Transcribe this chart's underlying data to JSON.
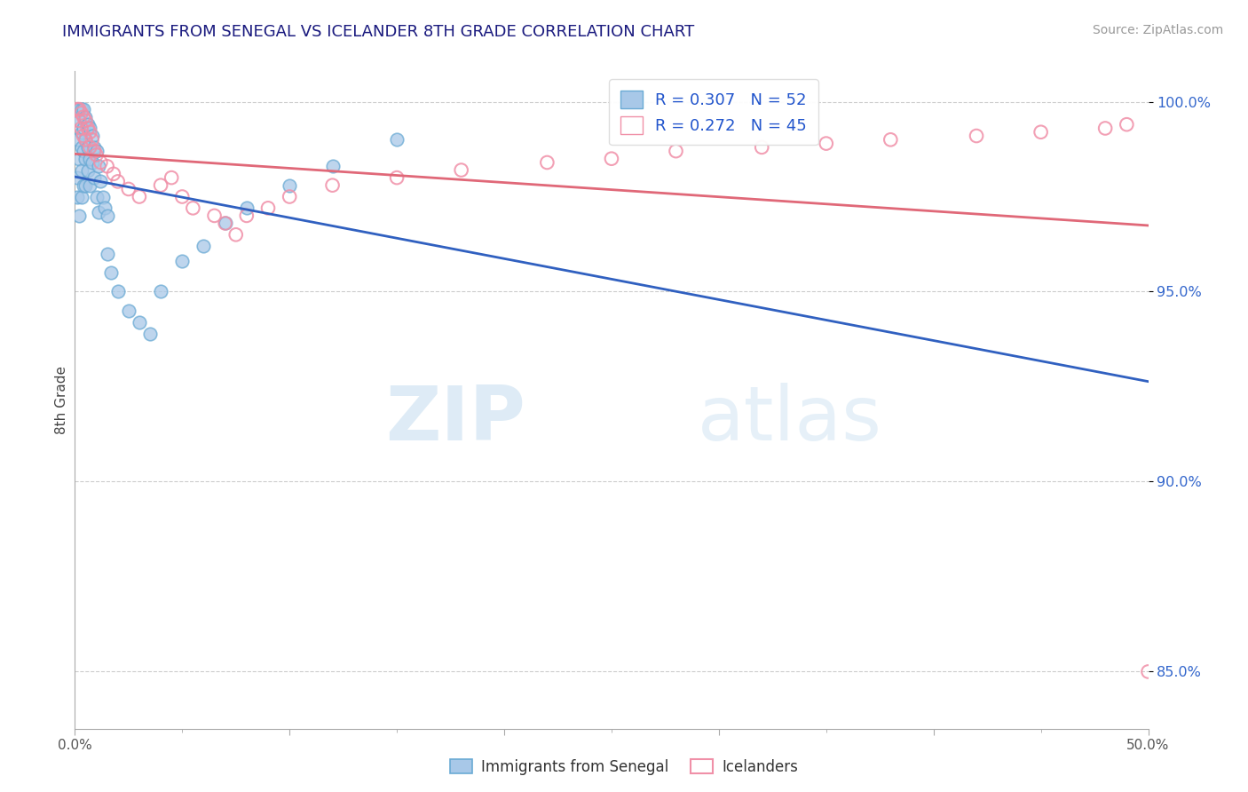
{
  "title": "IMMIGRANTS FROM SENEGAL VS ICELANDER 8TH GRADE CORRELATION CHART",
  "source": "Source: ZipAtlas.com",
  "ylabel": "8th Grade",
  "ytick_vals": [
    0.85,
    0.9,
    0.95,
    1.0
  ],
  "ytick_labels": [
    "85.0%",
    "90.0%",
    "95.0%",
    "100.0%"
  ],
  "xlim": [
    0.0,
    0.5
  ],
  "ylim": [
    0.835,
    1.008
  ],
  "r_senegal": 0.307,
  "n_senegal": 52,
  "r_icelander": 0.272,
  "n_icelander": 45,
  "color_senegal_fill": "#a8c8e8",
  "color_senegal_edge": "#6aaad4",
  "color_icelander_fill": "none",
  "color_icelander_edge": "#f090a8",
  "color_line_senegal": "#3060c0",
  "color_line_icelander": "#e06878",
  "legend_label_senegal": "Immigrants from Senegal",
  "legend_label_icelander": "Icelanders",
  "watermark_zip": "ZIP",
  "watermark_atlas": "atlas",
  "background_color": "#ffffff",
  "grid_color": "#cccccc",
  "title_color": "#1a1a7e",
  "ytick_color": "#3366cc",
  "xtick_color": "#555555",
  "ylabel_color": "#444444",
  "legend_text_color": "#2255cc",
  "senegal_x": [
    0.001,
    0.001,
    0.001,
    0.002,
    0.002,
    0.002,
    0.002,
    0.003,
    0.003,
    0.003,
    0.003,
    0.003,
    0.004,
    0.004,
    0.004,
    0.004,
    0.005,
    0.005,
    0.005,
    0.005,
    0.006,
    0.006,
    0.006,
    0.007,
    0.007,
    0.007,
    0.008,
    0.008,
    0.009,
    0.009,
    0.01,
    0.01,
    0.011,
    0.011,
    0.012,
    0.013,
    0.014,
    0.015,
    0.015,
    0.017,
    0.02,
    0.025,
    0.03,
    0.035,
    0.04,
    0.05,
    0.06,
    0.07,
    0.08,
    0.1,
    0.12,
    0.15
  ],
  "senegal_y": [
    0.99,
    0.98,
    0.975,
    0.998,
    0.995,
    0.985,
    0.97,
    0.998,
    0.992,
    0.988,
    0.982,
    0.975,
    0.998,
    0.993,
    0.987,
    0.978,
    0.996,
    0.99,
    0.985,
    0.978,
    0.994,
    0.988,
    0.982,
    0.993,
    0.985,
    0.978,
    0.991,
    0.984,
    0.988,
    0.98,
    0.987,
    0.975,
    0.983,
    0.971,
    0.979,
    0.975,
    0.972,
    0.97,
    0.96,
    0.955,
    0.95,
    0.945,
    0.942,
    0.939,
    0.95,
    0.958,
    0.962,
    0.968,
    0.972,
    0.978,
    0.983,
    0.99
  ],
  "icelander_x": [
    0.001,
    0.002,
    0.002,
    0.003,
    0.003,
    0.004,
    0.004,
    0.005,
    0.005,
    0.006,
    0.007,
    0.007,
    0.008,
    0.009,
    0.01,
    0.012,
    0.015,
    0.018,
    0.02,
    0.025,
    0.03,
    0.04,
    0.045,
    0.05,
    0.055,
    0.065,
    0.07,
    0.075,
    0.08,
    0.09,
    0.1,
    0.12,
    0.15,
    0.18,
    0.22,
    0.25,
    0.28,
    0.32,
    0.35,
    0.38,
    0.42,
    0.45,
    0.48,
    0.49,
    0.5
  ],
  "icelander_y": [
    0.998,
    0.998,
    0.995,
    0.997,
    0.993,
    0.996,
    0.991,
    0.995,
    0.99,
    0.993,
    0.992,
    0.988,
    0.99,
    0.987,
    0.986,
    0.984,
    0.983,
    0.981,
    0.979,
    0.977,
    0.975,
    0.978,
    0.98,
    0.975,
    0.972,
    0.97,
    0.968,
    0.965,
    0.97,
    0.972,
    0.975,
    0.978,
    0.98,
    0.982,
    0.984,
    0.985,
    0.987,
    0.988,
    0.989,
    0.99,
    0.991,
    0.992,
    0.993,
    0.994,
    0.85
  ]
}
